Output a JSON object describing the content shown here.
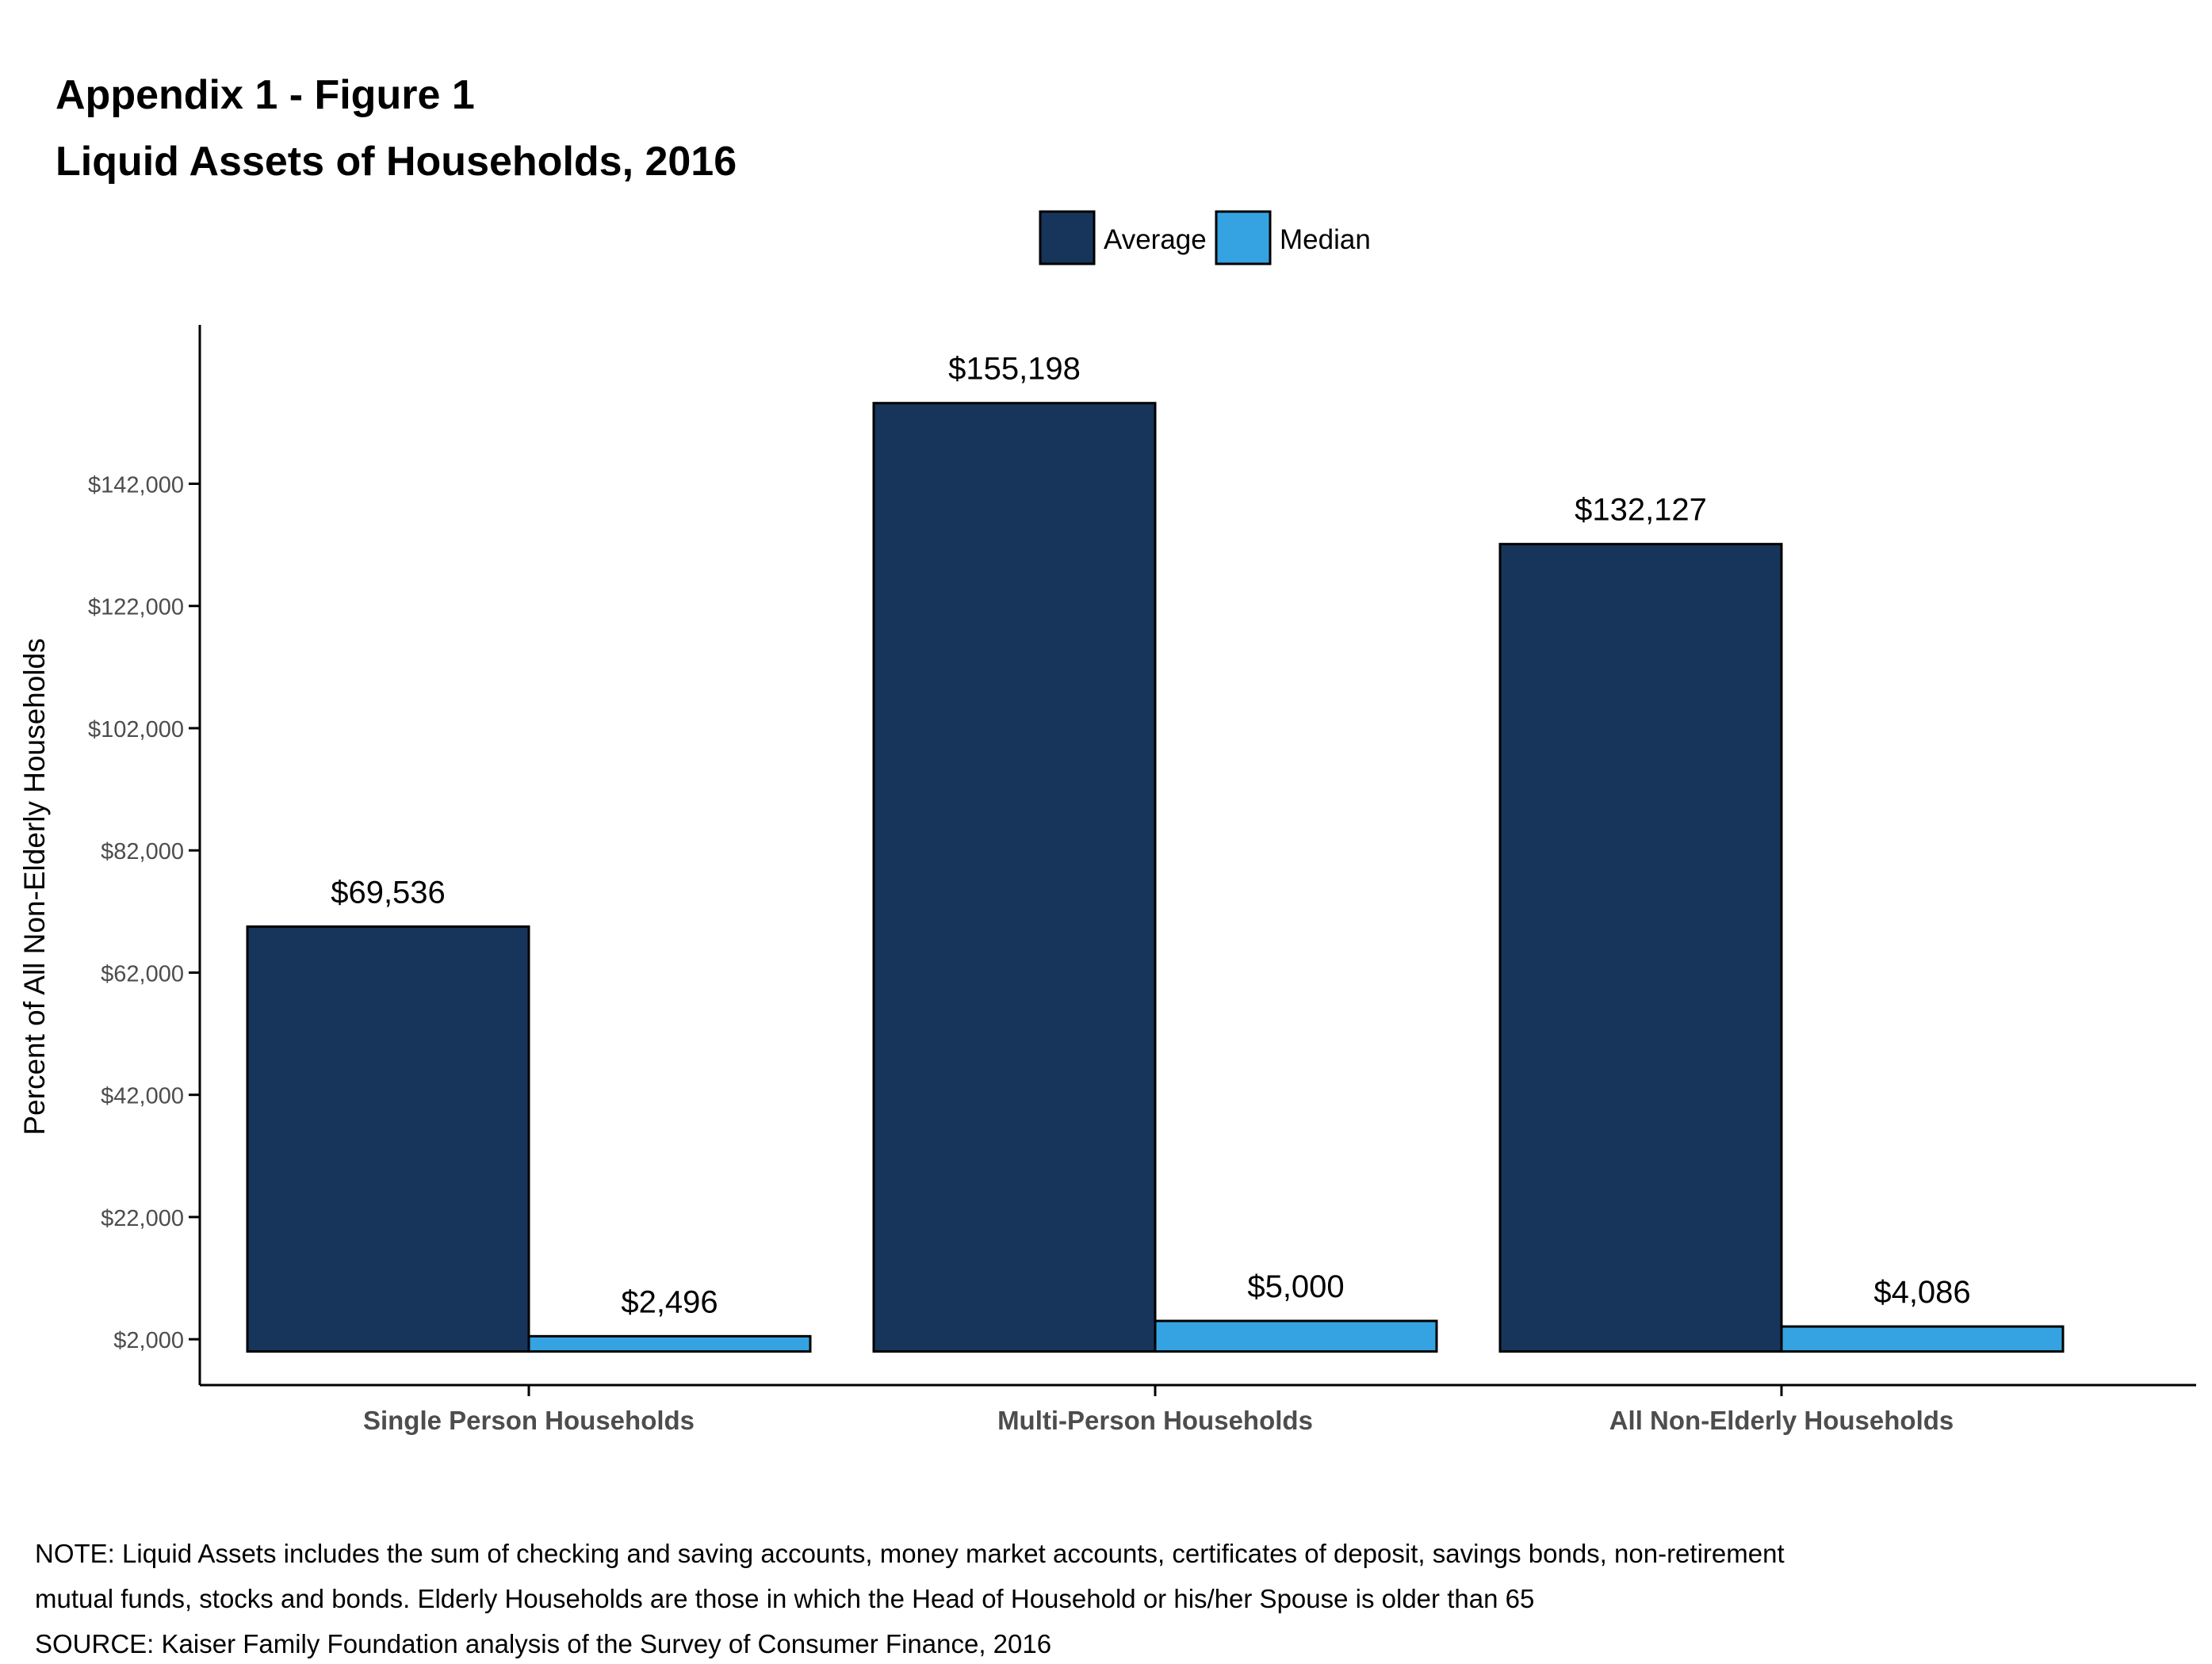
{
  "header": {
    "title_line1": "Appendix 1 - Figure 1",
    "title_line2": "Liquid Assets of Households, 2016"
  },
  "chart_data": {
    "type": "bar",
    "categories": [
      "Single Person Households",
      "Multi-Person Households",
      "All Non-Elderly Households"
    ],
    "series": [
      {
        "name": "Average",
        "values": [
          69536,
          155198,
          132127
        ],
        "labels": [
          "$69,536",
          "$155,198",
          "$132,127"
        ],
        "color": "#17355a"
      },
      {
        "name": "Median",
        "values": [
          2496,
          5000,
          4086
        ],
        "labels": [
          "$2,496",
          "$5,000",
          "$4,086"
        ],
        "color": "#35a3e1"
      }
    ],
    "ylabel": "Percent of All Non-Elderly Households",
    "xlabel": "",
    "yticks": [
      2000,
      22000,
      42000,
      62000,
      82000,
      102000,
      122000,
      142000
    ],
    "ytick_labels": [
      "$2,000",
      "$22,000",
      "$42,000",
      "$62,000",
      "$82,000",
      "$102,000",
      "$122,000",
      "$142,000"
    ],
    "ylim": [
      -5500,
      168000
    ],
    "bar_baseline": 0,
    "legend_position": "top-center",
    "grid": false
  },
  "notes": {
    "line1": "NOTE: Liquid Assets includes the sum of checking and saving accounts, money market accounts, certificates of deposit, savings bonds, non-retirement",
    "line2": "mutual funds, stocks and bonds.  Elderly Households are those in which the Head of Household or his/her Spouse is older than 65",
    "line3": "SOURCE: Kaiser Family Foundation analysis of the Survey of Consumer Finance, 2016"
  }
}
